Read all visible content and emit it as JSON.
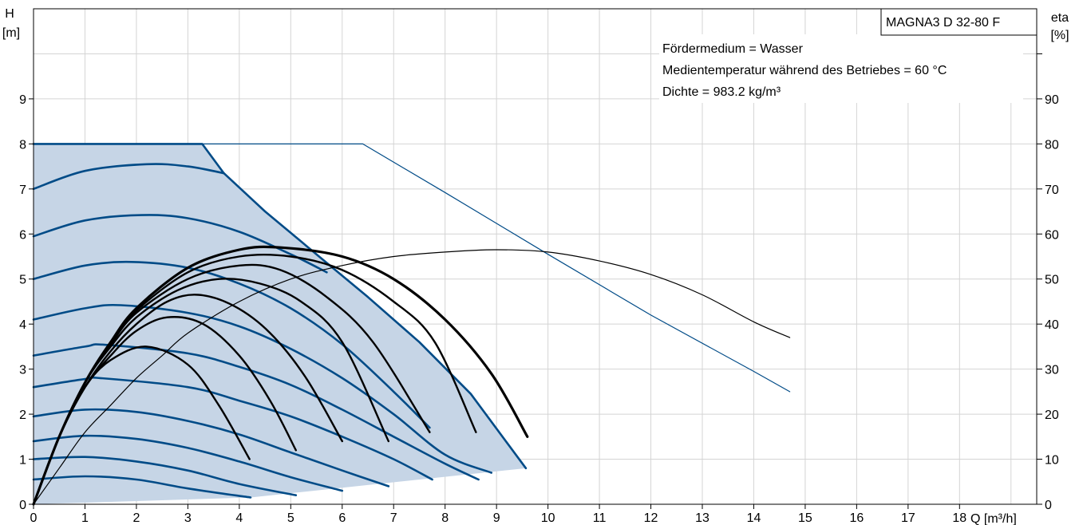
{
  "chart_data": {
    "type": "line",
    "title": "MAGNA3 D 32-80 F",
    "annotations": [
      "Fördermedium = Wasser",
      "Medientemperatur während des Betriebes = 60 °C",
      "Dichte = 983.2 kg/m³"
    ],
    "left_axis": {
      "label_line1": "H",
      "label_line2": "[m]",
      "range": [
        0,
        11
      ],
      "ticks": [
        0,
        1,
        2,
        3,
        4,
        5,
        6,
        7,
        8,
        9
      ]
    },
    "right_axis": {
      "label_line1": "eta",
      "label_line2": "[%]",
      "range": [
        0,
        110
      ],
      "ticks": [
        0,
        10,
        20,
        30,
        40,
        50,
        60,
        70,
        80,
        90
      ]
    },
    "x_axis": {
      "label": "Q [m³/h]",
      "range": [
        0,
        19.5
      ],
      "ticks": [
        0,
        1,
        2,
        3,
        4,
        5,
        6,
        7,
        8,
        9,
        10,
        11,
        12,
        13,
        14,
        15,
        16,
        17,
        18
      ]
    },
    "grid": true,
    "colors": {
      "pump": "#004b87",
      "fill": "#c6d5e6",
      "efficiency": "#000000",
      "grid": "#d4d4d4"
    },
    "envelope": [
      [
        0,
        8.0
      ],
      [
        3.28,
        8.0
      ],
      [
        3.7,
        7.35
      ],
      [
        4.5,
        6.5
      ],
      [
        5.5,
        5.55
      ],
      [
        6.5,
        4.6
      ],
      [
        7.5,
        3.6
      ],
      [
        8.5,
        2.45
      ],
      [
        9.57,
        0.8
      ],
      [
        4.22,
        0.15
      ],
      [
        0,
        0
      ]
    ],
    "series": [
      {
        "role": "pump",
        "points": [
          [
            0,
            8.0
          ],
          [
            3.28,
            8.0
          ],
          [
            3.7,
            7.35
          ],
          [
            4.5,
            6.5
          ],
          [
            5.5,
            5.55
          ],
          [
            6.5,
            4.6
          ],
          [
            7.5,
            3.6
          ],
          [
            8.5,
            2.45
          ],
          [
            9.57,
            0.8
          ]
        ]
      },
      {
        "role": "pump",
        "points": [
          [
            0,
            7.0
          ],
          [
            1,
            7.4
          ],
          [
            2.2,
            7.55
          ],
          [
            3,
            7.5
          ],
          [
            3.7,
            7.35
          ]
        ]
      },
      {
        "role": "pump",
        "points": [
          [
            0,
            5.95
          ],
          [
            1,
            6.3
          ],
          [
            2.1,
            6.42
          ],
          [
            3,
            6.35
          ],
          [
            4,
            6.05
          ],
          [
            5,
            5.55
          ],
          [
            5.7,
            5.15
          ]
        ]
      },
      {
        "role": "pump",
        "points": [
          [
            0,
            5.0
          ],
          [
            1,
            5.3
          ],
          [
            1.9,
            5.38
          ],
          [
            3,
            5.25
          ],
          [
            4,
            4.9
          ],
          [
            5,
            4.35
          ],
          [
            6,
            3.55
          ],
          [
            7.0,
            2.5
          ],
          [
            7.7,
            1.7
          ]
        ]
      },
      {
        "role": "pump",
        "points": [
          [
            0,
            4.1
          ],
          [
            1,
            4.35
          ],
          [
            1.7,
            4.42
          ],
          [
            3,
            4.25
          ],
          [
            4,
            3.95
          ],
          [
            5,
            3.45
          ],
          [
            6,
            2.8
          ],
          [
            7,
            2.0
          ],
          [
            8.0,
            1.1
          ],
          [
            8.9,
            0.7
          ]
        ]
      },
      {
        "role": "pump",
        "points": [
          [
            0,
            3.3
          ],
          [
            1,
            3.5
          ],
          [
            1.4,
            3.54
          ],
          [
            3,
            3.35
          ],
          [
            4,
            3.05
          ],
          [
            5,
            2.65
          ],
          [
            6,
            2.1
          ],
          [
            7,
            1.5
          ],
          [
            8.0,
            0.9
          ],
          [
            8.65,
            0.55
          ]
        ]
      },
      {
        "role": "pump",
        "points": [
          [
            0,
            2.6
          ],
          [
            1,
            2.78
          ],
          [
            1.3,
            2.8
          ],
          [
            3,
            2.6
          ],
          [
            4,
            2.3
          ],
          [
            5,
            1.95
          ],
          [
            6,
            1.5
          ],
          [
            7,
            1.0
          ],
          [
            7.75,
            0.55
          ]
        ]
      },
      {
        "role": "pump",
        "points": [
          [
            0,
            1.95
          ],
          [
            1,
            2.1
          ],
          [
            2,
            2.05
          ],
          [
            3,
            1.85
          ],
          [
            4,
            1.55
          ],
          [
            5,
            1.15
          ],
          [
            6,
            0.75
          ],
          [
            6.9,
            0.4
          ]
        ]
      },
      {
        "role": "pump",
        "points": [
          [
            0,
            1.4
          ],
          [
            1,
            1.52
          ],
          [
            2,
            1.45
          ],
          [
            3,
            1.25
          ],
          [
            4,
            0.95
          ],
          [
            5,
            0.6
          ],
          [
            6.0,
            0.3
          ]
        ]
      },
      {
        "role": "pump",
        "points": [
          [
            0,
            1.0
          ],
          [
            1,
            1.05
          ],
          [
            2,
            0.95
          ],
          [
            3,
            0.75
          ],
          [
            4,
            0.45
          ],
          [
            5.1,
            0.2
          ]
        ]
      },
      {
        "role": "pump",
        "points": [
          [
            0,
            0.55
          ],
          [
            1,
            0.62
          ],
          [
            2,
            0.55
          ],
          [
            3,
            0.35
          ],
          [
            4.22,
            0.15
          ]
        ]
      },
      {
        "role": "pump_thin",
        "points": [
          [
            3.28,
            8.0
          ],
          [
            6.4,
            8.0
          ],
          [
            8,
            6.92
          ],
          [
            10,
            5.55
          ],
          [
            12,
            4.2
          ],
          [
            14,
            2.95
          ],
          [
            14.7,
            2.5
          ]
        ]
      },
      {
        "role": "efficiency",
        "points": [
          [
            0,
            0
          ],
          [
            0.5,
            8
          ],
          [
            1.0,
            16
          ],
          [
            1.5,
            22
          ],
          [
            2,
            28
          ],
          [
            2.5,
            33
          ],
          [
            3,
            38
          ],
          [
            4,
            45
          ],
          [
            5,
            50
          ],
          [
            6,
            53
          ],
          [
            7,
            55
          ],
          [
            8,
            56
          ],
          [
            9,
            56.5
          ],
          [
            10,
            56
          ],
          [
            11,
            54
          ],
          [
            12,
            51
          ],
          [
            13,
            46.5
          ],
          [
            14,
            40.5
          ],
          [
            14.7,
            37
          ]
        ]
      },
      {
        "role": "efficiency",
        "points": [
          [
            0,
            0
          ],
          [
            0.5,
            15
          ],
          [
            1.0,
            26
          ],
          [
            1.5,
            32
          ],
          [
            2.2,
            35
          ],
          [
            3,
            31
          ],
          [
            3.6,
            22
          ],
          [
            4.2,
            10
          ]
        ]
      },
      {
        "role": "efficiency",
        "points": [
          [
            0,
            0
          ],
          [
            0.5,
            15
          ],
          [
            1.0,
            26
          ],
          [
            1.5,
            33
          ],
          [
            2.0,
            38.5
          ],
          [
            2.6,
            41.5
          ],
          [
            3.3,
            40
          ],
          [
            4.0,
            33
          ],
          [
            4.6,
            23
          ],
          [
            5.1,
            12
          ]
        ]
      },
      {
        "role": "efficiency",
        "points": [
          [
            0,
            0
          ],
          [
            0.5,
            15
          ],
          [
            1.0,
            26
          ],
          [
            1.5,
            34
          ],
          [
            2.0,
            40
          ],
          [
            2.6,
            45
          ],
          [
            3.2,
            46.5
          ],
          [
            3.9,
            44
          ],
          [
            4.6,
            38
          ],
          [
            5.3,
            28
          ],
          [
            6.0,
            14
          ]
        ]
      },
      {
        "role": "efficiency",
        "points": [
          [
            0,
            0
          ],
          [
            0.5,
            15
          ],
          [
            1.0,
            27
          ],
          [
            1.5,
            35
          ],
          [
            2.0,
            41.5
          ],
          [
            2.8,
            47.5
          ],
          [
            3.6,
            50
          ],
          [
            4.4,
            49
          ],
          [
            5.2,
            45
          ],
          [
            6.0,
            36
          ],
          [
            6.9,
            14
          ]
        ]
      },
      {
        "role": "efficiency",
        "points": [
          [
            0,
            0
          ],
          [
            0.5,
            15
          ],
          [
            1.0,
            27
          ],
          [
            1.5,
            35.5
          ],
          [
            2.0,
            42.5
          ],
          [
            3.0,
            50
          ],
          [
            4.0,
            53
          ],
          [
            4.8,
            52
          ],
          [
            5.7,
            46
          ],
          [
            6.6,
            36
          ],
          [
            7.7,
            16
          ]
        ]
      },
      {
        "role": "efficiency",
        "points": [
          [
            0,
            0
          ],
          [
            0.5,
            15
          ],
          [
            1.0,
            27
          ],
          [
            1.5,
            36
          ],
          [
            2.0,
            43
          ],
          [
            3.0,
            51.5
          ],
          [
            4.0,
            55
          ],
          [
            5.0,
            55
          ],
          [
            6.0,
            52
          ],
          [
            7.0,
            45
          ],
          [
            7.8,
            36
          ],
          [
            8.6,
            16
          ]
        ]
      },
      {
        "role": "efficiency_bold",
        "points": [
          [
            0,
            0
          ],
          [
            0.5,
            15
          ],
          [
            1.0,
            27
          ],
          [
            1.5,
            36
          ],
          [
            2.0,
            43.5
          ],
          [
            3.0,
            52.5
          ],
          [
            4.0,
            56.5
          ],
          [
            4.8,
            57
          ],
          [
            6.0,
            55
          ],
          [
            7.0,
            50
          ],
          [
            8.0,
            41
          ],
          [
            8.9,
            29
          ],
          [
            9.6,
            15
          ]
        ]
      }
    ]
  }
}
